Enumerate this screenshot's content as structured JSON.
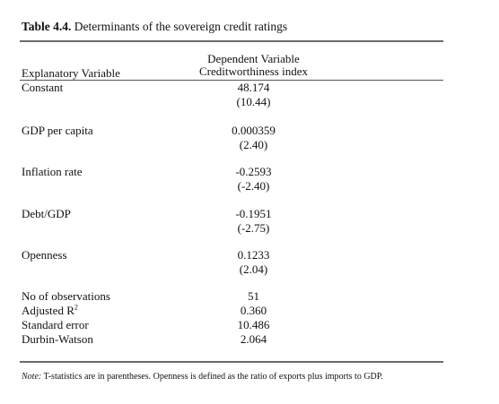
{
  "table": {
    "number": "Table 4.4.",
    "title": "Determinants of the sovereign credit ratings",
    "dep_var_line1": "Dependent Variable",
    "dep_var_line2": "Creditworthiness index",
    "explanatory_header": "Explanatory Variable",
    "rows": [
      {
        "label": "Constant",
        "coef": "48.174",
        "tstat": "(10.44)"
      },
      {
        "label": "GDP per capita",
        "coef": "0.000359",
        "tstat": "(2.40)"
      },
      {
        "label": "Inflation rate",
        "coef": "-0.2593",
        "tstat": "(-2.40)"
      },
      {
        "label": "Debt/GDP",
        "coef": "-0.1951",
        "tstat": "(-2.75)"
      },
      {
        "label": "Openness",
        "coef": "0.1233",
        "tstat": "(2.04)"
      }
    ],
    "stats": [
      {
        "label": "No of observations",
        "value": "51"
      },
      {
        "label": "Adjusted R",
        "sup": "2",
        "value": "0.360"
      },
      {
        "label": "Standard error",
        "value": "10.486"
      },
      {
        "label": "Durbin-Watson",
        "value": "2.064"
      }
    ],
    "note_label": "Note:",
    "note_text": " T-statistics are in parentheses.  Openness is defined as the ratio of exports plus imports to GDP."
  }
}
